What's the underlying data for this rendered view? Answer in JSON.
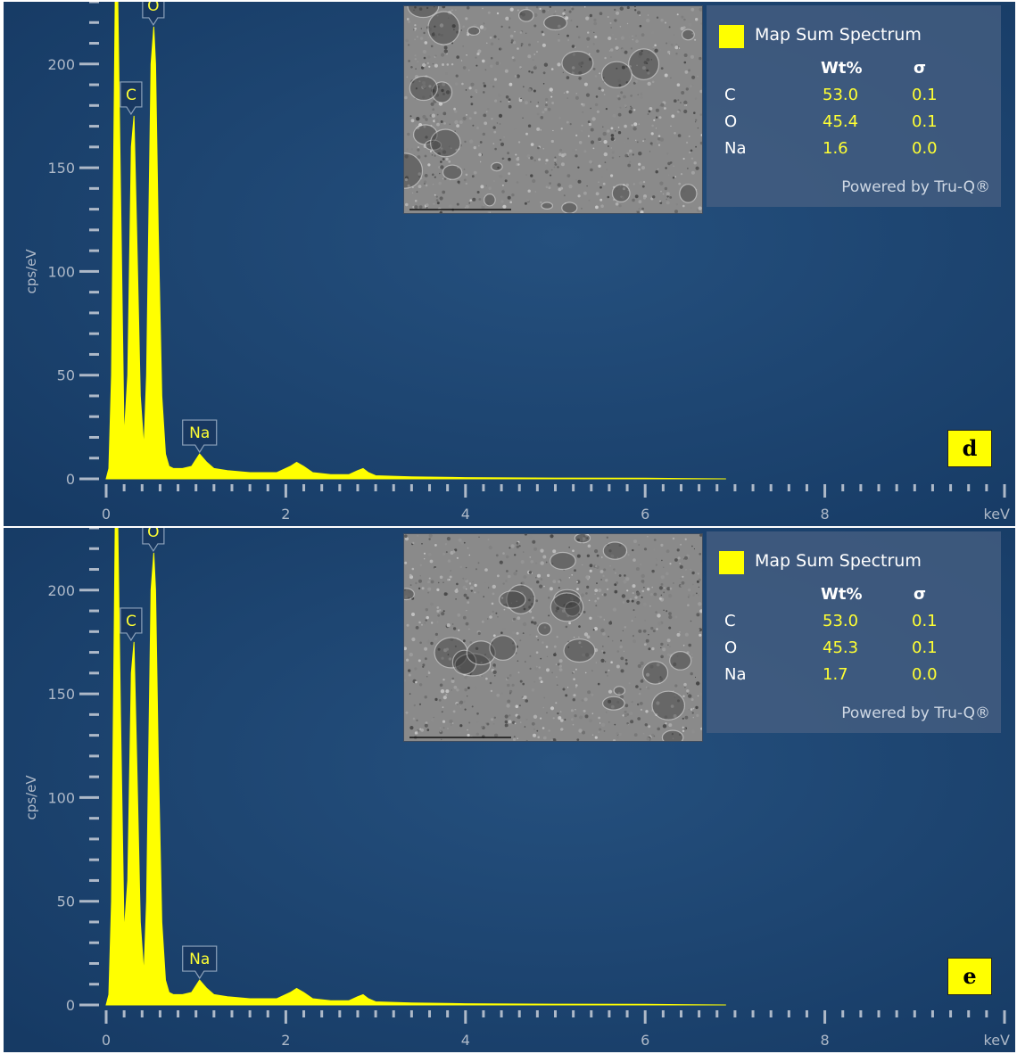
{
  "chart_data": [
    {
      "type": "area",
      "panel_label": "d",
      "xlabel": "keV",
      "ylabel": "cps/eV",
      "xlim": [
        0,
        10
      ],
      "ylim": [
        0,
        230
      ],
      "x_ticks": [
        "0",
        "2",
        "4",
        "6",
        "8"
      ],
      "y_ticks": [
        "0",
        "50",
        "100",
        "150",
        "200"
      ],
      "series": [
        {
          "color": "#ffff00",
          "x": [
            0.0,
            0.03,
            0.06,
            0.1,
            0.13,
            0.16,
            0.2,
            0.24,
            0.28,
            0.31,
            0.34,
            0.38,
            0.42,
            0.45,
            0.5,
            0.53,
            0.55,
            0.58,
            0.62,
            0.66,
            0.7,
            0.75,
            0.85,
            0.95,
            1.04,
            1.12,
            1.2,
            1.35,
            1.6,
            1.9,
            2.05,
            2.12,
            2.2,
            2.3,
            2.5,
            2.7,
            2.8,
            2.86,
            2.92,
            3.0,
            3.4,
            4.0,
            5.0,
            6.0,
            6.9
          ],
          "y": [
            0,
            5,
            50,
            230,
            230,
            140,
            20,
            50,
            160,
            175,
            120,
            40,
            15,
            50,
            200,
            218,
            200,
            120,
            40,
            12,
            6,
            5,
            5,
            6,
            12,
            8,
            5,
            4,
            3,
            3,
            6,
            8,
            6,
            3,
            2,
            2,
            4,
            5,
            3,
            1.5,
            1,
            0.6,
            0.4,
            0.3,
            0
          ]
        }
      ],
      "peak_labels": [
        {
          "label": "O",
          "x": 0.525,
          "y": 218
        },
        {
          "label": "C",
          "x": 0.277,
          "y": 175
        },
        {
          "label": "Na",
          "x": 1.04,
          "y": 12
        }
      ],
      "legend": {
        "title": "Map Sum Spectrum",
        "headers": [
          "Wt%",
          "σ"
        ],
        "rows": [
          {
            "element": "C",
            "wt": "53.0",
            "sigma": "0.1"
          },
          {
            "element": "O",
            "wt": "45.4",
            "sigma": "0.1"
          },
          {
            "element": "Na",
            "wt": "1.6",
            "sigma": "0.0"
          }
        ],
        "footer": "Powered by Tru-Q®"
      }
    },
    {
      "type": "area",
      "panel_label": "e",
      "xlabel": "keV",
      "ylabel": "cps/eV",
      "xlim": [
        0,
        10
      ],
      "ylim": [
        0,
        230
      ],
      "x_ticks": [
        "0",
        "2",
        "4",
        "6",
        "8"
      ],
      "y_ticks": [
        "0",
        "50",
        "100",
        "150",
        "200"
      ],
      "series": [
        {
          "color": "#ffff00",
          "x": [
            0.0,
            0.03,
            0.06,
            0.1,
            0.13,
            0.16,
            0.2,
            0.24,
            0.28,
            0.31,
            0.34,
            0.38,
            0.42,
            0.45,
            0.5,
            0.53,
            0.55,
            0.58,
            0.62,
            0.66,
            0.7,
            0.75,
            0.85,
            0.95,
            1.04,
            1.12,
            1.2,
            1.35,
            1.6,
            1.9,
            2.05,
            2.12,
            2.2,
            2.3,
            2.5,
            2.7,
            2.8,
            2.86,
            2.92,
            3.0,
            3.4,
            4.0,
            5.0,
            6.0,
            6.9
          ],
          "y": [
            0,
            5,
            50,
            230,
            230,
            140,
            35,
            60,
            160,
            175,
            120,
            40,
            15,
            50,
            200,
            218,
            200,
            120,
            40,
            12,
            6,
            5,
            5,
            6,
            12,
            8,
            5,
            4,
            3,
            3,
            6,
            8,
            6,
            3,
            2,
            2,
            4,
            5,
            3,
            1.5,
            1,
            0.6,
            0.4,
            0.3,
            0
          ]
        }
      ],
      "peak_labels": [
        {
          "label": "O",
          "x": 0.525,
          "y": 218
        },
        {
          "label": "C",
          "x": 0.277,
          "y": 175
        },
        {
          "label": "Na",
          "x": 1.04,
          "y": 12
        }
      ],
      "legend": {
        "title": "Map Sum Spectrum",
        "headers": [
          "Wt%",
          "σ"
        ],
        "rows": [
          {
            "element": "C",
            "wt": "53.0",
            "sigma": "0.1"
          },
          {
            "element": "O",
            "wt": "45.3",
            "sigma": "0.1"
          },
          {
            "element": "Na",
            "wt": "1.7",
            "sigma": "0.0"
          }
        ],
        "footer": "Powered by Tru-Q®"
      }
    }
  ]
}
